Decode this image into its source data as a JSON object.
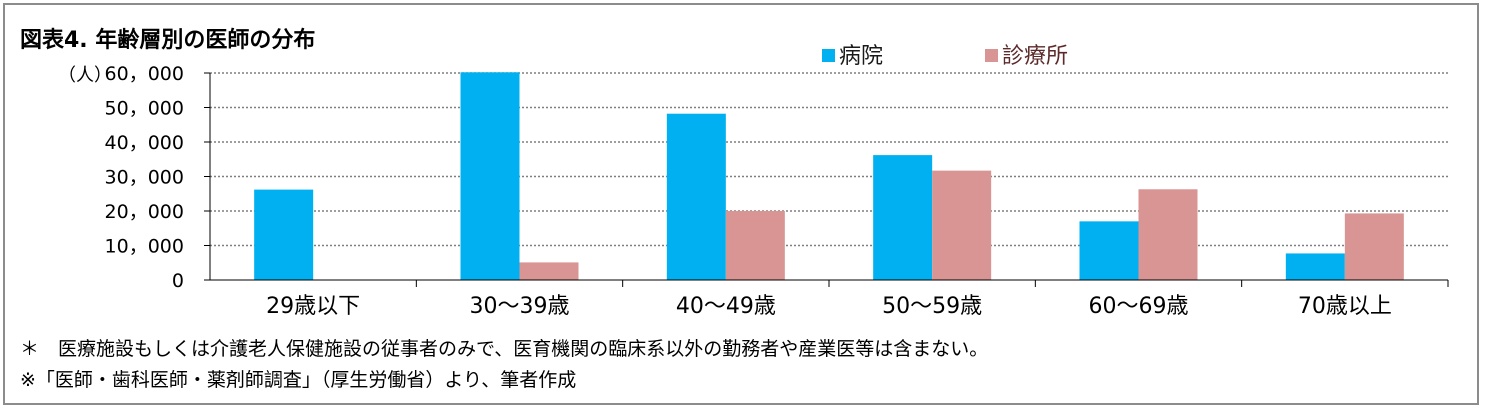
{
  "chart_title": "図表4.  年齢層別の医師の分布",
  "y_unit": "（人）",
  "notes": [
    "＊　医療施設もしくは介護老人保健施設の従事者のみで、医育機関の臨床系以外の勤務者や産業医等は含まない。",
    "※「医師・歯科医師・薬剤師調査」（厚生労働省）より、筆者作成"
  ],
  "chart_data": {
    "type": "bar",
    "categories": [
      "29歳以下",
      "30～39歳",
      "40～49歳",
      "50～59歳",
      "60～69歳",
      "70歳以上"
    ],
    "series": [
      {
        "name": "病院",
        "color": "#00b0f0",
        "values": [
          26200,
          60200,
          48200,
          36200,
          17000,
          7700
        ]
      },
      {
        "name": "診療所",
        "color": "#d99594",
        "values": [
          0,
          5100,
          20000,
          31700,
          26300,
          19300
        ]
      }
    ],
    "legend_colors": [
      "#1a1a1a",
      "#5c2a2a"
    ],
    "ylim": [
      0,
      60000
    ],
    "yticks": [
      0,
      10000,
      20000,
      30000,
      40000,
      50000,
      60000
    ],
    "ytick_labels": [
      "0",
      "10，000",
      "20，000",
      "30，000",
      "40，000",
      "50，000",
      "60，000"
    ],
    "grid": true,
    "legend_position": "top-right"
  }
}
